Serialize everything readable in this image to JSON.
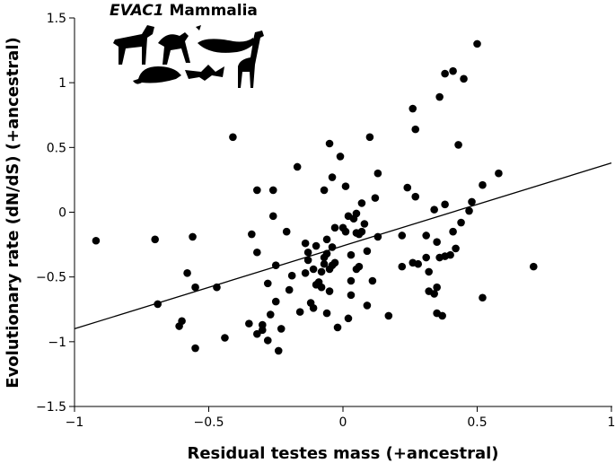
{
  "chart_data": {
    "type": "scatter",
    "title_parts": [
      "EVAC1",
      "Mammalia"
    ],
    "x_label": "Residual testes mass (+ancestral)",
    "y_label": "Evolutionary rate (dN/dS) (+ancestral)",
    "color": "#000000",
    "xlim": [
      -1,
      1
    ],
    "ylim": [
      -1.5,
      1.5
    ],
    "xticks": [
      {
        "value": -1,
        "label": "−1"
      },
      {
        "value": -0.5,
        "label": "−0.5"
      },
      0,
      0.5,
      1
    ],
    "yticks": [
      {
        "value": -1.5,
        "label": "−1.5"
      },
      {
        "value": -1,
        "label": "−1"
      },
      {
        "value": -0.5,
        "label": "−0.5"
      },
      0,
      0.5,
      1,
      1.5
    ],
    "fit_line": {
      "x": [
        -1,
        1
      ],
      "y": [
        -0.9,
        0.38
      ]
    },
    "x": [
      -0.92,
      -0.7,
      -0.69,
      -0.61,
      -0.6,
      -0.58,
      -0.56,
      -0.55,
      -0.55,
      -0.47,
      -0.44,
      -0.41,
      -0.35,
      -0.34,
      -0.32,
      -0.32,
      -0.32,
      -0.3,
      -0.3,
      -0.28,
      -0.28,
      -0.27,
      -0.26,
      -0.26,
      -0.25,
      -0.25,
      -0.24,
      -0.23,
      -0.21,
      -0.2,
      -0.19,
      -0.17,
      -0.16,
      -0.14,
      -0.14,
      -0.13,
      -0.13,
      -0.12,
      -0.11,
      -0.11,
      -0.1,
      -0.1,
      -0.09,
      -0.08,
      -0.08,
      -0.07,
      -0.07,
      -0.07,
      -0.06,
      -0.06,
      -0.06,
      -0.05,
      -0.05,
      -0.05,
      -0.04,
      -0.04,
      -0.04,
      -0.03,
      -0.03,
      -0.02,
      -0.01,
      0,
      0.01,
      0.01,
      0.02,
      0.02,
      0.03,
      0.03,
      0.03,
      0.04,
      0.05,
      0.05,
      0.05,
      0.06,
      0.06,
      0.07,
      0.07,
      0.08,
      0.09,
      0.09,
      0.1,
      0.11,
      0.12,
      0.13,
      0.13,
      0.17,
      0.22,
      0.22,
      0.24,
      0.26,
      0.26,
      0.27,
      0.27,
      0.28,
      0.31,
      0.31,
      0.32,
      0.32,
      0.34,
      0.34,
      0.35,
      0.35,
      0.35,
      0.36,
      0.36,
      0.37,
      0.38,
      0.38,
      0.38,
      0.4,
      0.41,
      0.41,
      0.42,
      0.43,
      0.44,
      0.45,
      0.47,
      0.48,
      0.5,
      0.52,
      0.52,
      0.58,
      0.71
    ],
    "y": [
      -0.22,
      -0.21,
      -0.71,
      -0.88,
      -0.84,
      -0.47,
      -0.19,
      -1.05,
      -0.58,
      -0.58,
      -0.97,
      0.58,
      -0.86,
      -0.17,
      0.17,
      -0.31,
      -0.94,
      -0.91,
      -0.87,
      -0.99,
      -0.55,
      -0.79,
      0.17,
      -0.03,
      -0.41,
      -0.69,
      -1.07,
      -0.9,
      -0.15,
      -0.6,
      -0.49,
      0.35,
      -0.77,
      -0.47,
      -0.24,
      -0.31,
      -0.37,
      -0.7,
      -0.74,
      -0.44,
      -0.56,
      -0.26,
      -0.54,
      -0.58,
      -0.46,
      0.17,
      -0.35,
      -0.4,
      -0.32,
      -0.78,
      -0.21,
      0.53,
      -0.44,
      -0.61,
      -0.41,
      -0.27,
      0.27,
      -0.39,
      -0.12,
      -0.89,
      0.43,
      -0.12,
      -0.15,
      0.2,
      -0.03,
      -0.82,
      -0.33,
      -0.53,
      -0.64,
      -0.05,
      -0.16,
      -0.44,
      -0.01,
      -0.17,
      -0.42,
      0.07,
      -0.15,
      -0.09,
      -0.3,
      -0.72,
      0.58,
      -0.53,
      0.11,
      -0.19,
      0.3,
      -0.8,
      -0.42,
      -0.18,
      0.19,
      0.8,
      -0.39,
      0.12,
      0.64,
      -0.4,
      -0.18,
      -0.35,
      -0.61,
      -0.46,
      -0.63,
      0.02,
      -0.58,
      -0.78,
      -0.23,
      -0.35,
      0.89,
      -0.8,
      1.07,
      0.06,
      -0.34,
      -0.33,
      -0.15,
      1.09,
      -0.28,
      0.52,
      -0.08,
      1.03,
      0.01,
      0.08,
      1.3,
      -0.66,
      0.21,
      0.3,
      -0.42
    ]
  }
}
